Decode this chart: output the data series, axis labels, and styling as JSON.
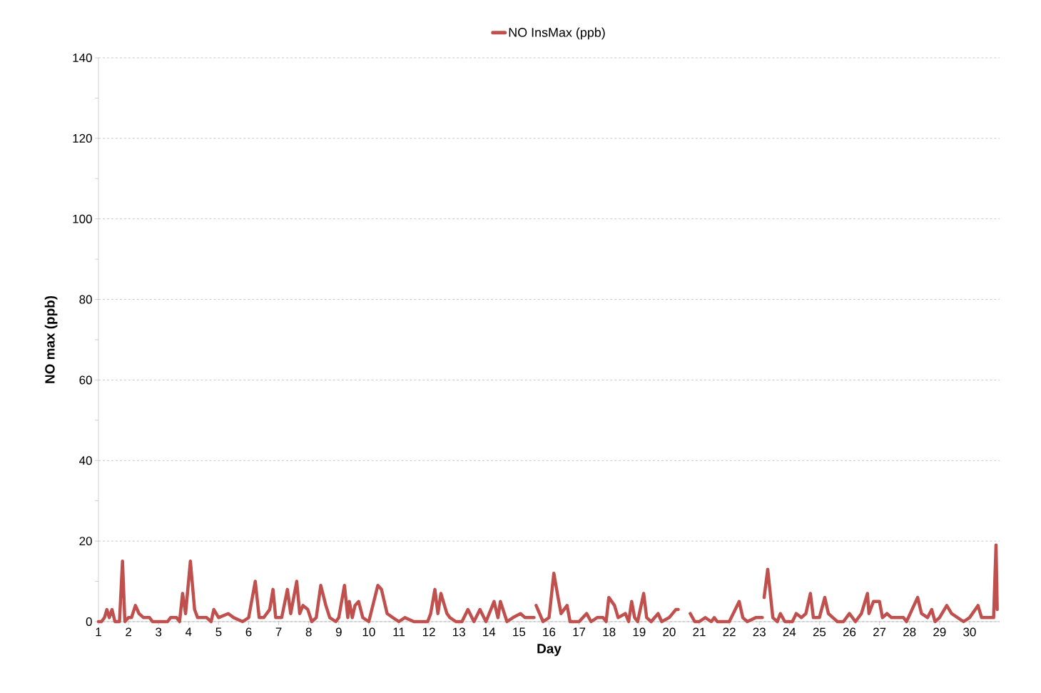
{
  "chart_data": {
    "type": "line",
    "xlabel": "Day",
    "ylabel": "NO max (ppb)",
    "xlim": [
      1,
      31
    ],
    "ylim": [
      0,
      140
    ],
    "xticks": [
      1,
      2,
      3,
      4,
      5,
      6,
      7,
      8,
      9,
      10,
      11,
      12,
      13,
      14,
      15,
      16,
      17,
      18,
      19,
      20,
      21,
      22,
      23,
      24,
      25,
      26,
      27,
      28,
      29,
      30
    ],
    "yticks": [
      0,
      {
        "value": 10,
        "label": null
      },
      20,
      {
        "value": 30,
        "label": null
      },
      40,
      {
        "value": 50,
        "label": null
      },
      60,
      {
        "value": 70,
        "label": null
      },
      80,
      {
        "value": 90,
        "label": null
      },
      100,
      {
        "value": 110,
        "label": null
      },
      120,
      {
        "value": 130,
        "label": null
      },
      140
    ],
    "grid": "y",
    "legend": "top",
    "marker": "none",
    "line_style": "solid",
    "series": [
      {
        "name": "NO InsMax (ppb)",
        "color": "#c0504d",
        "x": [
          1.0,
          1.1,
          1.2,
          1.28,
          1.36,
          1.45,
          1.55,
          1.7,
          1.8,
          1.88,
          2.0,
          2.1,
          2.23,
          2.35,
          2.5,
          2.7,
          2.8,
          3.0,
          3.3,
          3.4,
          3.6,
          3.7,
          3.8,
          3.9,
          4.06,
          4.2,
          4.3,
          4.6,
          4.75,
          4.84,
          5.0,
          5.32,
          5.5,
          5.8,
          6.0,
          6.22,
          6.35,
          6.5,
          6.7,
          6.81,
          6.9,
          7.1,
          7.29,
          7.4,
          7.6,
          7.7,
          7.81,
          7.97,
          8.1,
          8.25,
          8.4,
          8.57,
          8.7,
          8.9,
          9.0,
          9.19,
          9.3,
          9.35,
          9.45,
          9.54,
          9.66,
          9.8,
          10.0,
          10.3,
          10.42,
          10.61,
          10.8,
          11.0,
          11.2,
          11.5,
          11.96,
          12.06,
          12.2,
          12.3,
          12.4,
          12.6,
          12.7,
          12.9,
          13.1,
          13.3,
          13.5,
          13.7,
          13.9,
          14.17,
          14.3,
          14.38,
          14.6,
          14.8,
          15.05,
          15.2,
          15.5,
          15.53,
          15.57,
          15.8,
          16.0,
          16.16,
          16.3,
          16.4,
          16.6,
          16.7,
          17.0,
          17.25,
          17.4,
          17.6,
          17.8,
          17.9,
          17.99,
          18.18,
          18.3,
          18.54,
          18.65,
          18.75,
          18.85,
          18.95,
          19.15,
          19.25,
          19.4,
          19.63,
          19.75,
          20.0,
          20.22,
          20.3,
          20.5,
          20.7,
          20.85,
          21.0,
          21.2,
          21.4,
          21.5,
          21.6,
          22.0,
          22.33,
          22.45,
          22.6,
          22.88,
          23.1,
          23.13,
          23.16,
          23.28,
          23.45,
          23.6,
          23.7,
          23.85,
          24.1,
          24.23,
          24.4,
          24.55,
          24.7,
          24.8,
          25.0,
          25.18,
          25.3,
          25.45,
          25.6,
          25.8,
          26.0,
          26.2,
          26.4,
          26.6,
          26.65,
          26.8,
          27.0,
          27.1,
          27.25,
          27.4,
          27.6,
          27.8,
          27.9,
          28.27,
          28.4,
          28.6,
          28.74,
          28.85,
          29.0,
          29.24,
          29.4,
          29.6,
          29.8,
          30.0,
          30.28,
          30.4,
          30.8,
          30.88,
          30.92
        ],
        "values": [
          0,
          0,
          1,
          3,
          1,
          3,
          0,
          0,
          15,
          0,
          1,
          1,
          4,
          2,
          1,
          1,
          0,
          0,
          0,
          1,
          1,
          0,
          7,
          2,
          15,
          3,
          1,
          1,
          0,
          3,
          1,
          2,
          1,
          0,
          1,
          10,
          1,
          1,
          3,
          8,
          1,
          1,
          8,
          2,
          10,
          2,
          4,
          3,
          0,
          1,
          9,
          4,
          1,
          0,
          1,
          9,
          1,
          5,
          1,
          4,
          5,
          1,
          0,
          9,
          8,
          2,
          1,
          0,
          1,
          0,
          0,
          2,
          8,
          2,
          7,
          2,
          1,
          0,
          0,
          3,
          0,
          3,
          0,
          5,
          1,
          5,
          0,
          1,
          2,
          1,
          1,
          null,
          4,
          0,
          1,
          12,
          6,
          2,
          4,
          0,
          0,
          2,
          0,
          1,
          1,
          0,
          6,
          4,
          1,
          2,
          0,
          5,
          1,
          0,
          7,
          1,
          0,
          2,
          0,
          1,
          3,
          3,
          null,
          2,
          0,
          0,
          1,
          0,
          1,
          0,
          0,
          5,
          1,
          0,
          1,
          1,
          null,
          6,
          13,
          1,
          0,
          2,
          0,
          0,
          2,
          1,
          2,
          7,
          1,
          1,
          6,
          2,
          1,
          0,
          0,
          2,
          0,
          2,
          7,
          2,
          5,
          5,
          1,
          2,
          1,
          1,
          1,
          0,
          6,
          2,
          1,
          3,
          0,
          1,
          4,
          2,
          1,
          0,
          1,
          4,
          1,
          1,
          19,
          3
        ]
      }
    ]
  }
}
